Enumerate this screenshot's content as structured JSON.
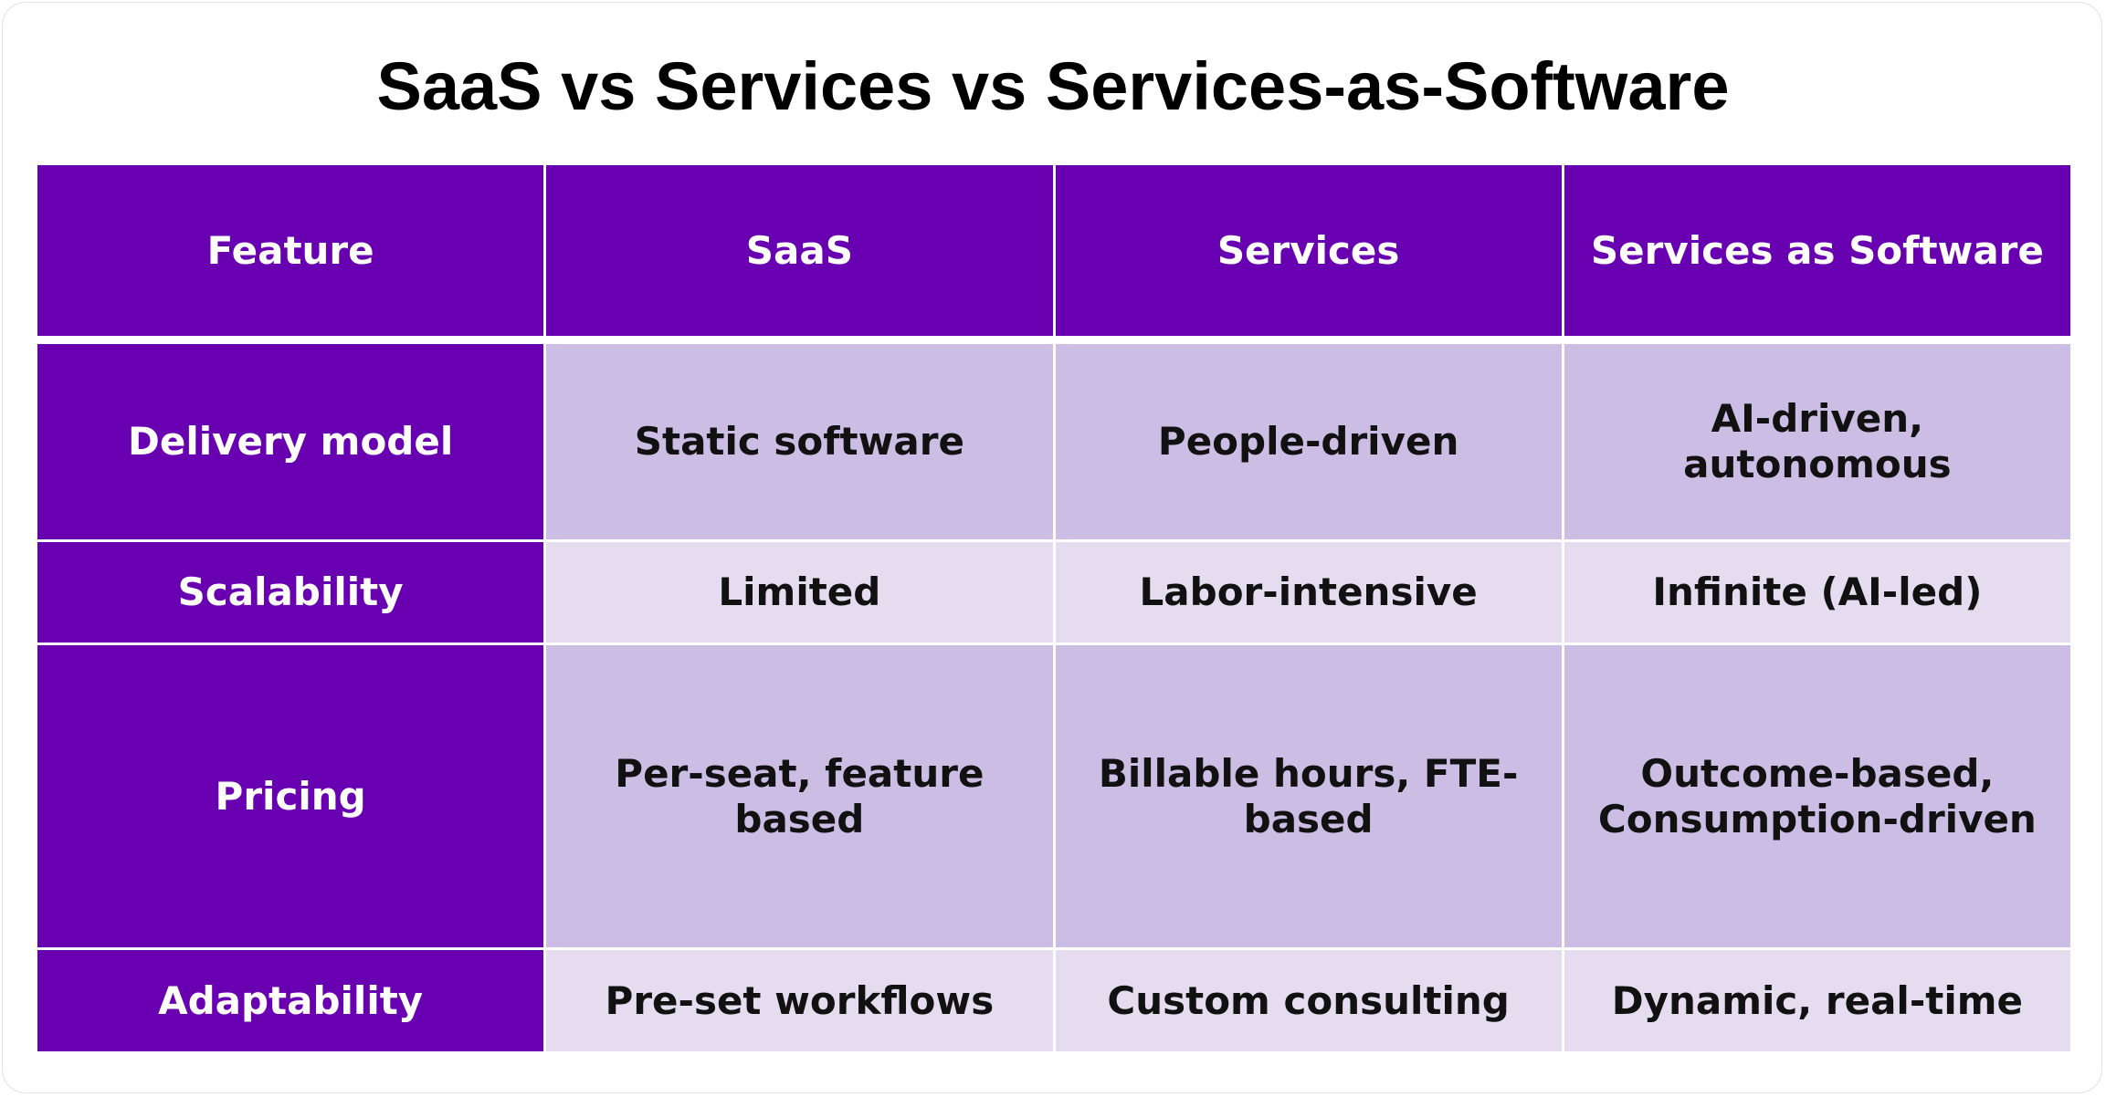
{
  "header": {
    "title": "SaaS vs Services vs Services-as-Software"
  },
  "table": {
    "columns": [
      "Feature",
      "SaaS",
      "Services",
      "Services as Software"
    ],
    "rows": [
      [
        "Delivery model",
        "Static software",
        "People-driven",
        "AI-driven, autonomous"
      ],
      [
        "Scalability",
        "Limited",
        "Labor-intensive",
        "Infinite (AI-led)"
      ],
      [
        "Pricing",
        "Per-seat, feature based",
        "Billable hours, FTE-based",
        "Outcome-based, Consumption-driven"
      ],
      [
        "Adaptability",
        "Pre-set workflows",
        "Custom consulting",
        "Dynamic, real-time"
      ]
    ]
  }
}
